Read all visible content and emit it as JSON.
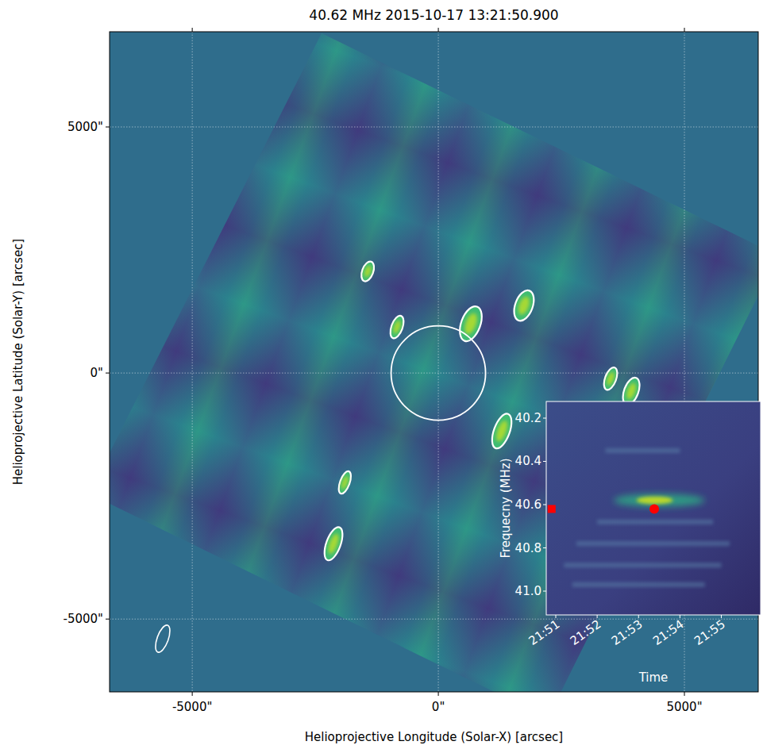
{
  "chart_data": [
    {
      "type": "map",
      "title": "40.62 MHz 2015-10-17 13:21:50.900",
      "x_label": "Helioprojective Longitude (Solar-X) [arcsec]",
      "y_label": "Helioprojective Latitude (Solar-Y) [arcsec]",
      "xlim": [
        -6680,
        6500
      ],
      "ylim": [
        -6480,
        6935
      ],
      "xticks": [
        {
          "value": -5000,
          "label": "-5000\""
        },
        {
          "value": 0,
          "label": "0\""
        },
        {
          "value": 5000,
          "label": "5000\""
        }
      ],
      "yticks": [
        {
          "value": -5000,
          "label": "-5000\""
        },
        {
          "value": 0,
          "label": "0\""
        },
        {
          "value": 5000,
          "label": "5000\""
        }
      ],
      "grid": true,
      "disk_radius": 960,
      "beam": {
        "x": -5600,
        "y": -5400
      },
      "sources": [
        {
          "x": -1435,
          "y": 2065,
          "width": 225,
          "height": 420
        },
        {
          "x": -840,
          "y": 935,
          "width": 225,
          "height": 480
        },
        {
          "x": 660,
          "y": 1000,
          "width": 390,
          "height": 740
        },
        {
          "x": 1740,
          "y": 1370,
          "width": 355,
          "height": 645
        },
        {
          "x": 3500,
          "y": -115,
          "width": 225,
          "height": 480
        },
        {
          "x": 3920,
          "y": -370,
          "width": 290,
          "height": 580
        },
        {
          "x": 1290,
          "y": -1180,
          "width": 320,
          "height": 740
        },
        {
          "x": -1900,
          "y": -2225,
          "width": 195,
          "height": 480
        },
        {
          "x": -2130,
          "y": -3470,
          "width": 290,
          "height": 710
        }
      ]
    },
    {
      "type": "spectrogram",
      "x_label": "Time",
      "y_label": "Frequecny (MHz)",
      "xlim": [
        1310.77,
        1315.95
      ],
      "ylim": [
        41.11,
        40.123
      ],
      "xticks": [
        {
          "value": 1311,
          "label": "21:51"
        },
        {
          "value": 1312,
          "label": "21:52"
        },
        {
          "value": 1313,
          "label": "21:53"
        },
        {
          "value": 1314,
          "label": "21:54"
        },
        {
          "value": 1315,
          "label": "21:55"
        }
      ],
      "yticks": [
        40.2,
        40.4,
        40.6,
        40.8,
        {
          "value": 41,
          "label": "41.0"
        }
      ],
      "burst": {
        "t_start": 1312.4,
        "t_end": 1314.6,
        "f_low": 40.55,
        "f_high": 40.61
      },
      "features": [
        {
          "t_start": 1312.2,
          "t_end": 1314.0,
          "freq": 40.35
        },
        {
          "t_start": 1312.0,
          "t_end": 1314.8,
          "freq": 40.68
        },
        {
          "t_start": 1311.5,
          "t_end": 1315.2,
          "freq": 40.78
        },
        {
          "t_start": 1311.2,
          "t_end": 1315.0,
          "freq": 40.88
        },
        {
          "t_start": 1311.4,
          "t_end": 1314.6,
          "freq": 40.97
        }
      ],
      "markers": [
        {
          "x": 1310.9,
          "y": 40.62,
          "marker": "square",
          "color": "#ff0000"
        },
        {
          "x": 1313.38,
          "y": 40.62,
          "marker": "circle",
          "color": "#ff0000"
        }
      ]
    }
  ]
}
